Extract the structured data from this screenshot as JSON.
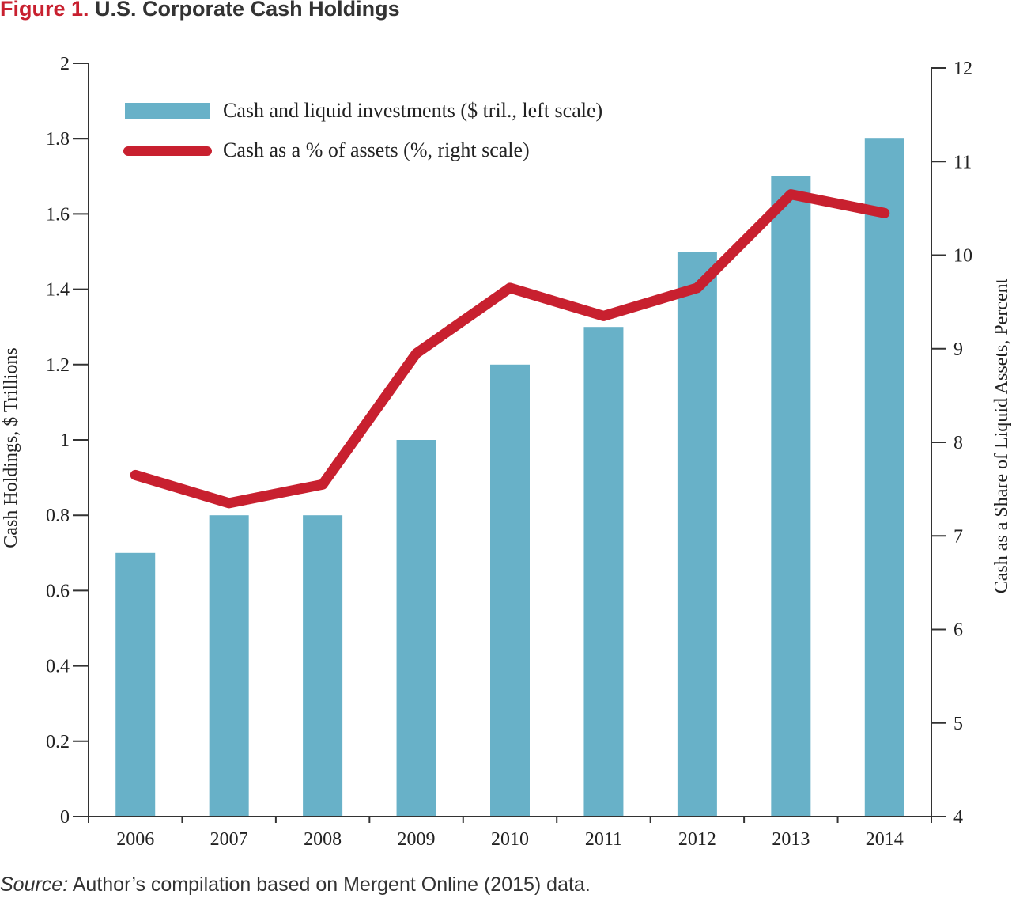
{
  "figure": {
    "label": "Figure 1.",
    "title": "U.S. Corporate Cash Holdings"
  },
  "source": {
    "label": "Source:",
    "text": "Author’s compilation based on Mergent Online (2015) data."
  },
  "colors": {
    "bar": "#68b1c8",
    "line": "#c8202f",
    "axis": "#333333",
    "title_accent": "#c8202f"
  },
  "chart_data": {
    "type": "bar",
    "title": "U.S. Corporate Cash Holdings",
    "categories": [
      "2006",
      "2007",
      "2008",
      "2009",
      "2010",
      "2011",
      "2012",
      "2013",
      "2014"
    ],
    "series": [
      {
        "name": "Cash and liquid investments ($ tril., left scale)",
        "type": "bar",
        "axis": "left",
        "values": [
          0.7,
          0.8,
          0.8,
          1.0,
          1.2,
          1.3,
          1.5,
          1.7,
          1.8
        ]
      },
      {
        "name": "Cash as a % of assets (%, right scale)",
        "type": "line",
        "axis": "right",
        "values": [
          7.65,
          7.35,
          7.55,
          8.95,
          9.65,
          9.35,
          9.65,
          10.65,
          10.45
        ]
      }
    ],
    "ylabel_left": "Cash Holdings, $ Trillions",
    "ylabel_right": "Cash as a Share of Liquid Assets, Percent",
    "xlabel": "",
    "ylim_left": [
      0,
      2
    ],
    "ylim_right": [
      4,
      12
    ],
    "yticks_left": [
      "0",
      "0.2",
      "0.4",
      "0.6",
      "0.8",
      "1",
      "1.2",
      "1.4",
      "1.6",
      "1.8",
      "2"
    ],
    "yticks_right": [
      "4",
      "5",
      "6",
      "7",
      "8",
      "9",
      "10",
      "11",
      "12"
    ],
    "legend_position": "top-left",
    "grid": false
  }
}
